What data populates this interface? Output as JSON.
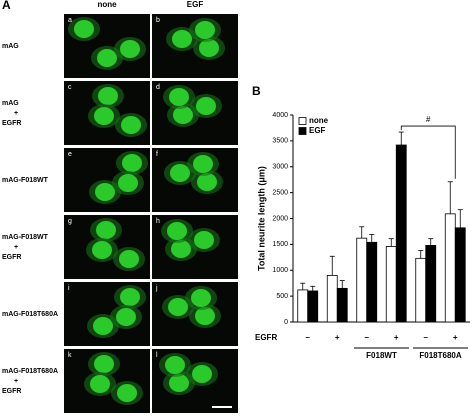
{
  "panel_a": {
    "label": "A",
    "columns": [
      "none",
      "EGF"
    ],
    "rows": [
      {
        "label_lines": [
          "mAG"
        ],
        "images": [
          "a",
          "b"
        ]
      },
      {
        "label_lines": [
          "mAG",
          "+",
          "EGFR"
        ],
        "images": [
          "c",
          "d"
        ]
      },
      {
        "label_lines": [
          "mAG-F018WT"
        ],
        "images": [
          "e",
          "f"
        ]
      },
      {
        "label_lines": [
          "mAG-F018WT",
          "+",
          "EGFR"
        ],
        "images": [
          "g",
          "h"
        ]
      },
      {
        "label_lines": [
          "mAG-F018T680A"
        ],
        "images": [
          "i",
          "j"
        ]
      },
      {
        "label_lines": [
          "mAG-F018T680A",
          "+",
          "EGFR"
        ],
        "images": [
          "k",
          "l"
        ]
      }
    ]
  },
  "chart_data": {
    "type": "bar",
    "panel_label": "B",
    "y_label": "Total neurite length (μm)",
    "x_row_label": "EGFR",
    "categories": [
      "–",
      "+",
      "–",
      "+",
      "–",
      "+"
    ],
    "groups": [
      {
        "label": "F018WT",
        "span": [
          2,
          3
        ]
      },
      {
        "label": "F018T680A",
        "span": [
          4,
          5
        ]
      }
    ],
    "series": [
      {
        "name": "none",
        "color": "#ffffff",
        "values": [
          620,
          900,
          1620,
          1460,
          1230,
          2090
        ],
        "errors": [
          130,
          370,
          220,
          150,
          150,
          620
        ]
      },
      {
        "name": "EGF",
        "color": "#000000",
        "values": [
          600,
          650,
          1540,
          3420,
          1480,
          1820
        ],
        "errors": [
          90,
          150,
          150,
          250,
          130,
          350
        ]
      }
    ],
    "annotation": "#",
    "ylim": [
      0,
      4000
    ],
    "yticks": [
      0,
      500,
      1000,
      1500,
      2000,
      2500,
      3000,
      3500,
      4000
    ],
    "legend": "top-left"
  }
}
